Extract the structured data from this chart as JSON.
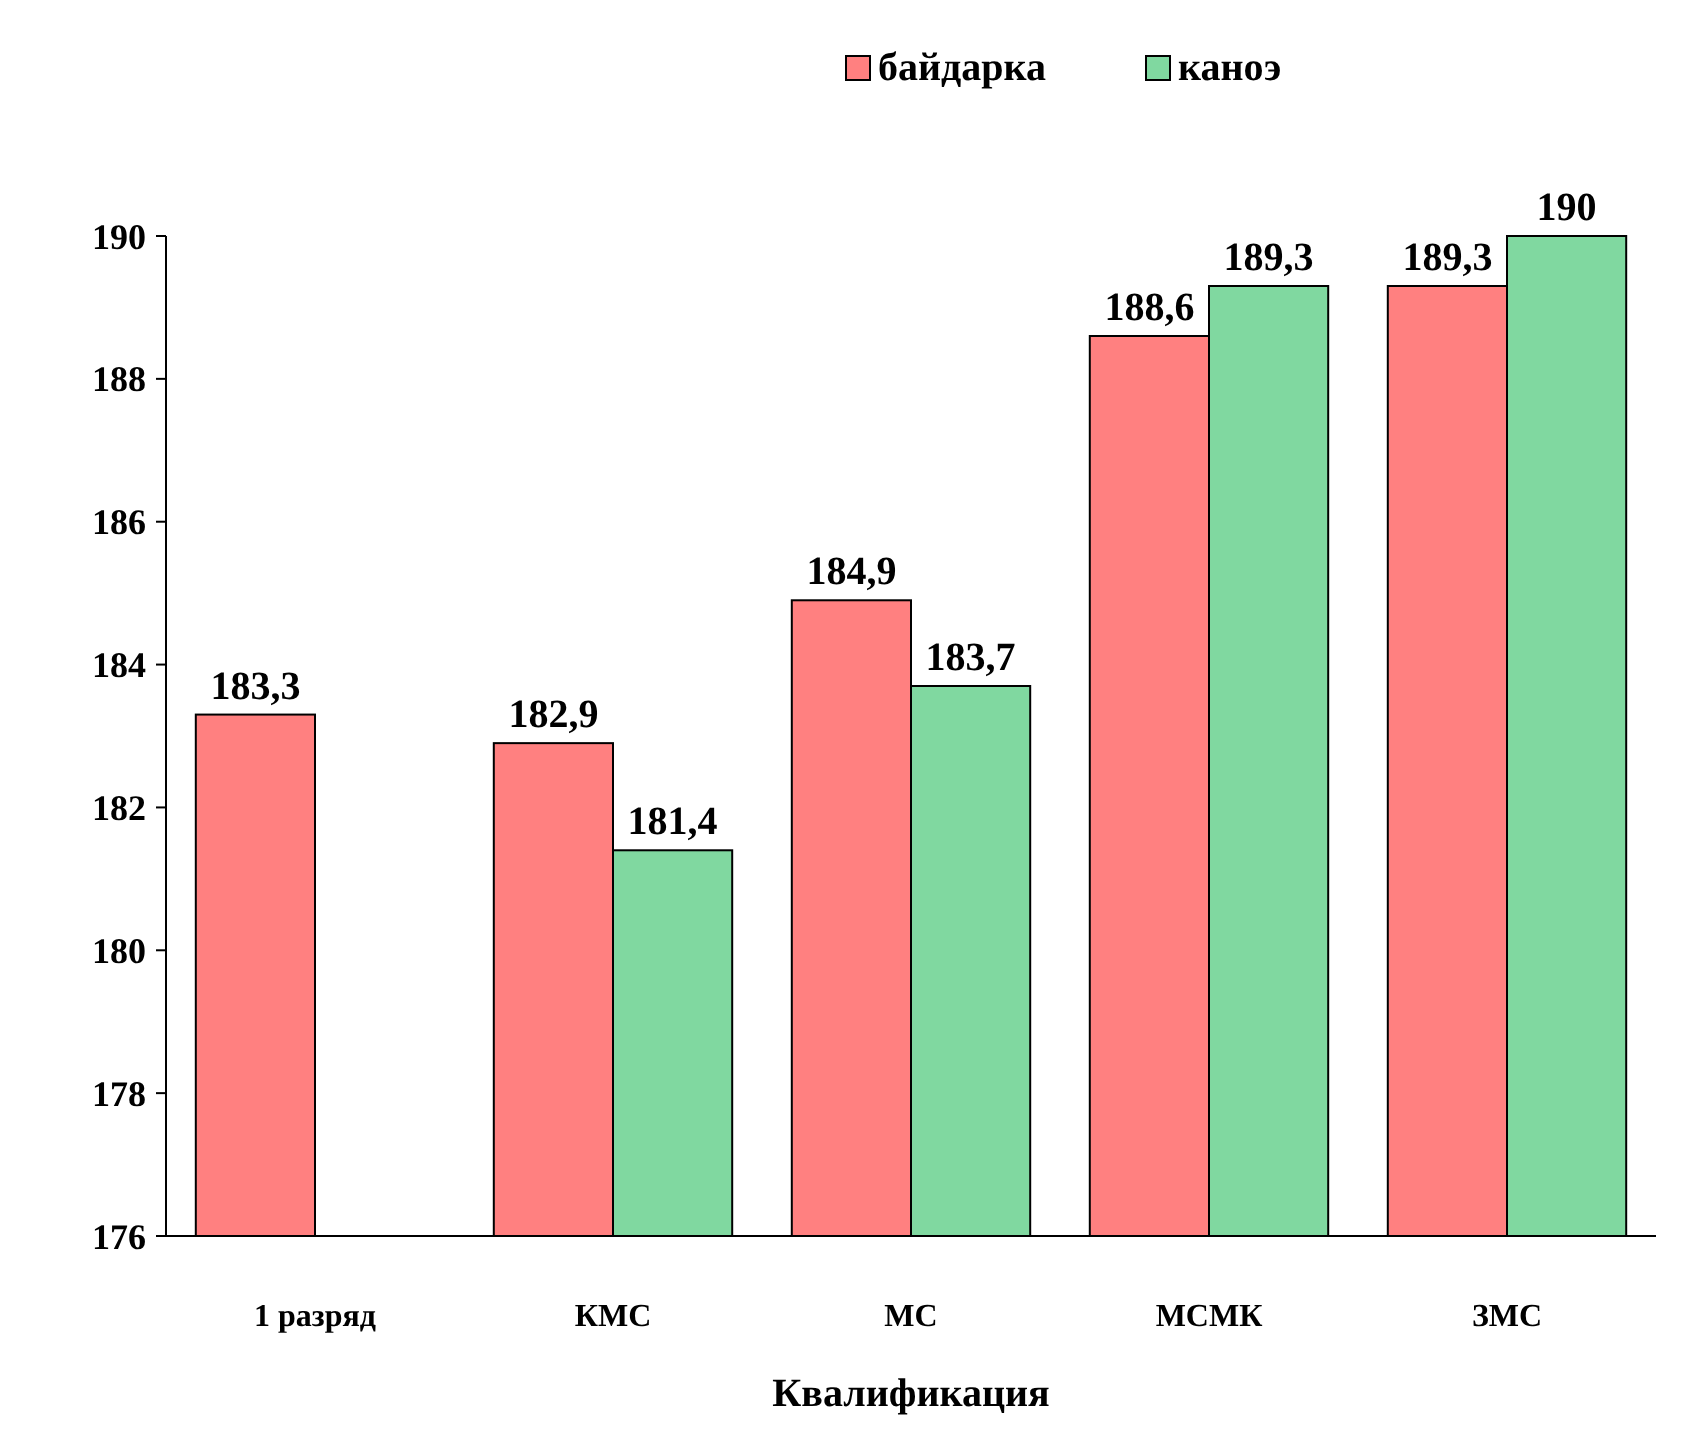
{
  "chart_data": {
    "type": "bar",
    "xlabel": "Квалификация",
    "categories": [
      "1 разряд",
      "КМС",
      "МС",
      "МСМК",
      "ЗМС"
    ],
    "series": [
      {
        "name": "байдарка",
        "color": "#ff8080",
        "values": [
          183.3,
          182.9,
          184.9,
          188.6,
          189.3
        ],
        "value_labels": [
          "183,3",
          "182,9",
          "184,9",
          "188,6",
          "189,3"
        ]
      },
      {
        "name": "каноэ",
        "color": "#80d8a0",
        "values": [
          null,
          181.4,
          183.7,
          189.3,
          190
        ],
        "value_labels": [
          null,
          "181,4",
          "183,7",
          "189,3",
          "190"
        ]
      }
    ],
    "ylim": [
      176,
      190
    ],
    "yticks": [
      176,
      178,
      180,
      182,
      184,
      186,
      188,
      190
    ],
    "legend": "top right",
    "grid": false
  }
}
